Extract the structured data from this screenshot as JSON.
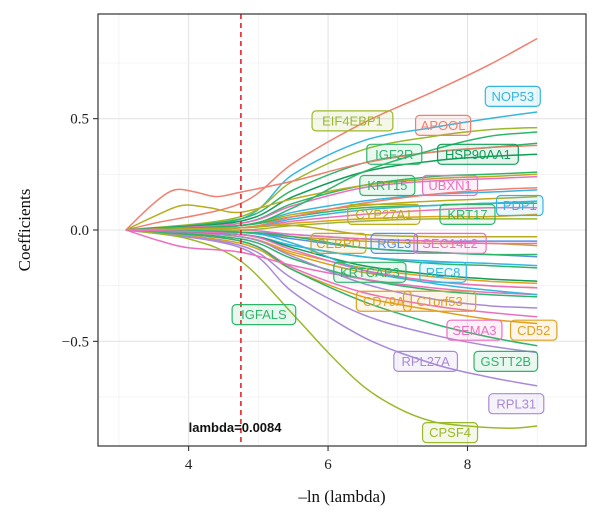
{
  "chart_data": {
    "type": "line",
    "title": "",
    "xlabel": "–ln (lambda)",
    "ylabel": "Coefficients",
    "xlim": [
      2.7,
      9.7
    ],
    "ylim": [
      -0.97,
      0.97
    ],
    "xticks": [
      4,
      6,
      8
    ],
    "yticks": [
      -0.5,
      0.0,
      0.5
    ],
    "ytick_labels": [
      "−0.5",
      "0.0",
      "0.5"
    ],
    "grid": true,
    "vline": {
      "x": 4.75,
      "color": "#e3242b",
      "style": "dashed"
    },
    "annotation": {
      "text": "lambda=0.0084",
      "x": 4.0,
      "y": -0.89
    },
    "series": [
      {
        "name": "NOP53",
        "color": "#35b6e0",
        "x": [
          3.1,
          4.75,
          5.5,
          6.5,
          7.5,
          8.3,
          9.0
        ],
        "y": [
          0,
          0.05,
          0.25,
          0.4,
          0.46,
          0.5,
          0.53
        ]
      },
      {
        "name": "APOOL",
        "color": "#f07f6e",
        "x": [
          3.1,
          3.5,
          4.75,
          5.5,
          6.5,
          7.5,
          8.3,
          9.0
        ],
        "y": [
          0,
          0.03,
          0.12,
          0.3,
          0.48,
          0.62,
          0.74,
          0.86
        ]
      },
      {
        "name": "EIF4EBP1",
        "color": "#9ab92a",
        "x": [
          3.1,
          4.75,
          5.5,
          6.5,
          7.5,
          8.3,
          9.0
        ],
        "y": [
          0,
          0.06,
          0.22,
          0.36,
          0.42,
          0.45,
          0.46
        ]
      },
      {
        "name": "IGF2R",
        "color": "#2fb56a",
        "x": [
          3.1,
          4.75,
          5.5,
          6.5,
          7.5,
          8.3,
          9.0
        ],
        "y": [
          0,
          0.05,
          0.18,
          0.3,
          0.35,
          0.37,
          0.39
        ]
      },
      {
        "name": "HSP90AA1",
        "color": "#0f9d58",
        "x": [
          3.1,
          4.75,
          5.5,
          6.5,
          7.5,
          8.3,
          9.0
        ],
        "y": [
          0,
          0.04,
          0.15,
          0.26,
          0.31,
          0.33,
          0.34
        ]
      },
      {
        "name": "KRT15",
        "color": "#2fb56a",
        "x": [
          3.1,
          4.75,
          5.5,
          6.5,
          7.5,
          8.3,
          9.0
        ],
        "y": [
          0,
          0.03,
          0.12,
          0.2,
          0.24,
          0.25,
          0.26
        ]
      },
      {
        "name": "UBXN1",
        "color": "#ec6fbf",
        "x": [
          3.1,
          4.75,
          5.5,
          6.5,
          7.5,
          8.3,
          9.0
        ],
        "y": [
          0,
          0.03,
          0.11,
          0.19,
          0.22,
          0.23,
          0.24
        ]
      },
      {
        "name": "PDP1",
        "color": "#35b6e0",
        "x": [
          3.1,
          4.75,
          5.5,
          6.5,
          7.5,
          8.3,
          9.0
        ],
        "y": [
          0,
          0.02,
          0.08,
          0.13,
          0.16,
          0.17,
          0.18
        ]
      },
      {
        "name": "CYP27A1",
        "color": "#b9ac1e",
        "x": [
          3.1,
          4.75,
          5.5,
          6.5,
          7.5,
          8.3,
          9.0
        ],
        "y": [
          0,
          0.02,
          0.07,
          0.11,
          0.13,
          0.14,
          0.15
        ]
      },
      {
        "name": "KRT17",
        "color": "#2fb56a",
        "x": [
          3.1,
          4.75,
          5.5,
          6.5,
          7.5,
          8.3,
          9.0
        ],
        "y": [
          0,
          0.02,
          0.06,
          0.1,
          0.11,
          0.12,
          0.12
        ]
      },
      {
        "name": "CEBPD",
        "color": "#c9a227",
        "x": [
          3.1,
          4.75,
          5.5,
          6.5,
          7.5,
          8.3,
          9.0
        ],
        "y": [
          0,
          -0.01,
          -0.03,
          -0.05,
          -0.06,
          -0.06,
          -0.07
        ]
      },
      {
        "name": "RGL3",
        "color": "#5b8fe0",
        "x": [
          3.1,
          4.75,
          5.5,
          6.5,
          7.5,
          8.3,
          9.0
        ],
        "y": [
          0,
          -0.01,
          -0.02,
          -0.04,
          -0.05,
          -0.05,
          -0.05
        ]
      },
      {
        "name": "SEC14L2",
        "color": "#ec6fbf",
        "x": [
          3.1,
          4.75,
          5.5,
          6.5,
          7.5,
          8.3,
          9.0
        ],
        "y": [
          0,
          0.0,
          -0.02,
          -0.04,
          -0.05,
          -0.06,
          -0.06
        ]
      },
      {
        "name": "KRTCAP3",
        "color": "#2fb56a",
        "x": [
          3.1,
          4.75,
          5.5,
          6.5,
          7.5,
          8.3,
          9.0
        ],
        "y": [
          0,
          -0.02,
          -0.07,
          -0.12,
          -0.15,
          -0.16,
          -0.17
        ]
      },
      {
        "name": "REC8",
        "color": "#35b6e0",
        "x": [
          3.1,
          4.75,
          5.5,
          6.5,
          7.5,
          8.3,
          9.0
        ],
        "y": [
          0,
          -0.02,
          -0.07,
          -0.12,
          -0.14,
          -0.15,
          -0.16
        ]
      },
      {
        "name": "CD79A",
        "color": "#e0a020",
        "x": [
          3.1,
          4.75,
          5.5,
          6.5,
          7.5,
          8.3,
          9.0
        ],
        "y": [
          0,
          -0.03,
          -0.1,
          -0.17,
          -0.21,
          -0.23,
          -0.24
        ]
      },
      {
        "name": "C1orf53",
        "color": "#e0a020",
        "x": [
          3.1,
          4.75,
          5.5,
          6.5,
          7.5,
          8.3,
          9.0
        ],
        "y": [
          0,
          -0.03,
          -0.11,
          -0.19,
          -0.23,
          -0.25,
          -0.26
        ]
      },
      {
        "name": "IGFALS",
        "color": "#2fb56a",
        "x": [
          3.1,
          4.75,
          5.5,
          6.5,
          7.5,
          8.3,
          9.0
        ],
        "y": [
          0,
          -0.04,
          -0.13,
          -0.22,
          -0.27,
          -0.29,
          -0.3
        ]
      },
      {
        "name": "SEMA3",
        "color": "#ec6fbf",
        "x": [
          3.1,
          4.75,
          5.5,
          6.5,
          7.5,
          8.3,
          9.0
        ],
        "y": [
          0,
          -0.05,
          -0.17,
          -0.28,
          -0.34,
          -0.37,
          -0.39
        ]
      },
      {
        "name": "CD52",
        "color": "#e0a020",
        "x": [
          3.1,
          4.75,
          5.5,
          6.5,
          7.5,
          8.3,
          9.0
        ],
        "y": [
          0,
          -0.06,
          -0.18,
          -0.3,
          -0.36,
          -0.4,
          -0.42
        ]
      },
      {
        "name": "RPL27A",
        "color": "#a98ad8",
        "x": [
          3.1,
          4.75,
          5.5,
          6.5,
          7.5,
          8.3,
          9.0
        ],
        "y": [
          0,
          -0.07,
          -0.22,
          -0.38,
          -0.47,
          -0.52,
          -0.55
        ]
      },
      {
        "name": "GSTT2B",
        "color": "#2fb56a",
        "x": [
          3.1,
          4.75,
          5.5,
          6.5,
          7.5,
          8.3,
          9.0
        ],
        "y": [
          0,
          -0.05,
          -0.18,
          -0.32,
          -0.42,
          -0.48,
          -0.52
        ]
      },
      {
        "name": "RPL31",
        "color": "#a98ad8",
        "x": [
          3.1,
          4.75,
          5.5,
          6.5,
          7.5,
          8.3,
          9.0
        ],
        "y": [
          0,
          -0.08,
          -0.28,
          -0.48,
          -0.6,
          -0.66,
          -0.7
        ]
      },
      {
        "name": "CPSF4",
        "color": "#9ab92a",
        "x": [
          3.1,
          4.0,
          4.75,
          5.5,
          6.0,
          6.5,
          7.0,
          7.5,
          8.0,
          8.6,
          9.0
        ],
        "y": [
          0,
          -0.04,
          -0.14,
          -0.38,
          -0.55,
          -0.7,
          -0.8,
          -0.86,
          -0.88,
          -0.89,
          -0.88
        ]
      },
      {
        "name": "",
        "color": "#f07f6e",
        "x": [
          3.1,
          3.5,
          3.8,
          4.1,
          4.4,
          4.75,
          5.5,
          6.5,
          7.5,
          8.3,
          9.0
        ],
        "y": [
          0,
          0.12,
          0.18,
          0.17,
          0.15,
          0.17,
          0.22,
          0.3,
          0.35,
          0.37,
          0.38
        ]
      },
      {
        "name": "",
        "color": "#b9ac1e",
        "x": [
          3.1,
          3.5,
          3.9,
          4.3,
          4.75,
          5.5,
          6.5,
          7.5,
          8.3,
          9.0
        ],
        "y": [
          0,
          0.06,
          0.11,
          0.1,
          0.08,
          0.14,
          0.2,
          0.23,
          0.24,
          0.25
        ]
      },
      {
        "name": "",
        "color": "#2fb56a",
        "x": [
          3.1,
          4.75,
          5.5,
          6.5,
          7.5,
          8.3,
          9.0
        ],
        "y": [
          0,
          0.02,
          0.1,
          0.26,
          0.36,
          0.42,
          0.44
        ]
      },
      {
        "name": "",
        "color": "#ec6fbf",
        "x": [
          3.1,
          4.75,
          5.5,
          6.5,
          7.5,
          8.3,
          9.0
        ],
        "y": [
          0,
          0.01,
          0.04,
          0.07,
          0.09,
          0.1,
          0.1
        ]
      },
      {
        "name": "",
        "color": "#35b6e0",
        "x": [
          3.1,
          4.75,
          5.5,
          6.5,
          7.5,
          8.3,
          9.0
        ],
        "y": [
          0,
          0.01,
          0.05,
          0.09,
          0.11,
          0.12,
          0.13
        ]
      },
      {
        "name": "",
        "color": "#5b8fe0",
        "x": [
          3.1,
          4.75,
          5.5,
          6.5,
          7.5,
          8.3,
          9.0
        ],
        "y": [
          0,
          -0.01,
          -0.04,
          -0.08,
          -0.1,
          -0.11,
          -0.12
        ]
      },
      {
        "name": "",
        "color": "#ec6fbf",
        "x": [
          3.1,
          3.6,
          4.0,
          4.75,
          5.5,
          6.5,
          7.5,
          8.3,
          9.0
        ],
        "y": [
          0,
          -0.05,
          -0.08,
          -0.1,
          -0.16,
          -0.22,
          -0.26,
          -0.28,
          -0.29
        ]
      },
      {
        "name": "",
        "color": "#a98ad8",
        "x": [
          3.1,
          4.75,
          5.5,
          6.5,
          7.5,
          8.3,
          9.0
        ],
        "y": [
          0,
          -0.03,
          -0.12,
          -0.24,
          -0.31,
          -0.34,
          -0.35
        ]
      },
      {
        "name": "",
        "color": "#0f9d58",
        "x": [
          3.1,
          4.75,
          5.5,
          6.5,
          7.5,
          8.3,
          9.0
        ],
        "y": [
          0,
          -0.02,
          -0.08,
          -0.16,
          -0.2,
          -0.22,
          -0.23
        ]
      },
      {
        "name": "",
        "color": "#e0a020",
        "x": [
          3.1,
          4.75,
          5.5,
          6.5,
          7.5,
          8.3,
          9.0
        ],
        "y": [
          0,
          0.01,
          0.03,
          0.05,
          0.06,
          0.06,
          0.07
        ]
      },
      {
        "name": "",
        "color": "#9ab92a",
        "x": [
          3.1,
          4.75,
          5.5,
          6.5,
          7.5,
          8.3,
          9.0
        ],
        "y": [
          0,
          0.0,
          0.02,
          0.04,
          0.05,
          0.05,
          0.05
        ]
      },
      {
        "name": "",
        "color": "#35b6e0",
        "x": [
          3.1,
          4.75,
          5.5,
          6.5,
          7.5,
          8.3,
          9.0
        ],
        "y": [
          0,
          -0.01,
          -0.06,
          -0.18,
          -0.24,
          -0.27,
          -0.29
        ]
      },
      {
        "name": "",
        "color": "#f07f6e",
        "x": [
          3.1,
          4.75,
          5.5,
          6.5,
          7.5,
          8.3,
          9.0
        ],
        "y": [
          0,
          0.01,
          0.06,
          0.12,
          0.16,
          0.18,
          0.19
        ]
      },
      {
        "name": "",
        "color": "#2fb56a",
        "x": [
          3.1,
          4.75,
          5.5,
          6.5,
          7.5,
          8.3,
          9.0
        ],
        "y": [
          0,
          -0.01,
          -0.03,
          -0.08,
          -0.1,
          -0.11,
          -0.11
        ]
      },
      {
        "name": "",
        "color": "#b9ac1e",
        "x": [
          3.1,
          4.75,
          5.5,
          6.5,
          7.5,
          8.3,
          9.0
        ],
        "y": [
          0,
          0.01,
          0.02,
          -0.02,
          -0.03,
          -0.03,
          -0.03
        ]
      },
      {
        "name": "",
        "color": "#ec6fbf",
        "x": [
          3.1,
          4.75,
          5.5,
          6.5,
          7.5,
          8.3,
          9.0
        ],
        "y": [
          0,
          -0.02,
          -0.09,
          -0.18,
          -0.23,
          -0.25,
          -0.26
        ]
      }
    ],
    "labels": [
      {
        "text": "NOP53",
        "color": "#35b6e0",
        "x": 8.65,
        "y": 0.6
      },
      {
        "text": "EIF4EBP1",
        "color": "#9ab92a",
        "x": 6.35,
        "y": 0.49
      },
      {
        "text": "APOOL",
        "color": "#f07f6e",
        "x": 7.65,
        "y": 0.47
      },
      {
        "text": "IGF2R",
        "color": "#2fb56a",
        "x": 6.95,
        "y": 0.34
      },
      {
        "text": "HSP90AA1",
        "color": "#0f9d58",
        "x": 8.15,
        "y": 0.34
      },
      {
        "text": "KRT15",
        "color": "#2fb56a",
        "x": 6.85,
        "y": 0.2
      },
      {
        "text": "UBXN1",
        "color": "#ec6fbf",
        "x": 7.75,
        "y": 0.2
      },
      {
        "text": "PDP1",
        "color": "#35b6e0",
        "x": 8.75,
        "y": 0.11
      },
      {
        "text": "CYP27A1",
        "color": "#b9ac1e",
        "x": 6.8,
        "y": 0.07
      },
      {
        "text": "KRT17",
        "color": "#2fb56a",
        "x": 8.0,
        "y": 0.07
      },
      {
        "text": "CEBPD",
        "color": "#c9a227",
        "x": 6.15,
        "y": -0.06
      },
      {
        "text": "RGL3",
        "color": "#5b8fe0",
        "x": 6.95,
        "y": -0.06
      },
      {
        "text": "SEC14L2",
        "color": "#ec6fbf",
        "x": 7.75,
        "y": -0.06
      },
      {
        "text": "KRTCAP3",
        "color": "#2fb56a",
        "x": 6.6,
        "y": -0.19
      },
      {
        "text": "REC8",
        "color": "#35b6e0",
        "x": 7.65,
        "y": -0.19
      },
      {
        "text": "CD79A",
        "color": "#e0a020",
        "x": 6.8,
        "y": -0.32
      },
      {
        "text": "C1orf53",
        "color": "#e0a020",
        "x": 7.6,
        "y": -0.32
      },
      {
        "text": "IGFALS",
        "color": "#2fb56a",
        "x": 5.08,
        "y": -0.38
      },
      {
        "text": "SEMA3",
        "color": "#ec6fbf",
        "x": 8.1,
        "y": -0.45
      },
      {
        "text": "CD52",
        "color": "#e0a020",
        "x": 8.95,
        "y": -0.45
      },
      {
        "text": "RPL27A",
        "color": "#a98ad8",
        "x": 7.4,
        "y": -0.59
      },
      {
        "text": "GSTT2B",
        "color": "#2fb56a",
        "x": 8.55,
        "y": -0.59
      },
      {
        "text": "RPL31",
        "color": "#a98ad8",
        "x": 8.7,
        "y": -0.78
      },
      {
        "text": "CPSF4",
        "color": "#9ab92a",
        "x": 7.75,
        "y": -0.91
      }
    ]
  }
}
